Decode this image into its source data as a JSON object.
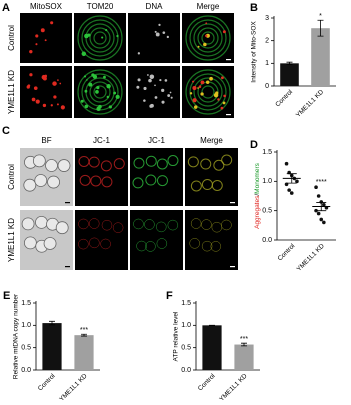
{
  "panels": [
    {
      "label": "A",
      "columns": [
        {
          "text": "MitoSOX",
          "color": "#e0201b"
        },
        {
          "text": "TOM20",
          "color": "#1a9a2a"
        },
        {
          "text": "DNA",
          "color": "#2030d0"
        },
        {
          "text": "Merge",
          "color": "#000000"
        }
      ],
      "rows": [
        "Control",
        "YME1L1 KD"
      ]
    },
    {
      "label": "C",
      "columns": [
        {
          "text": "BF",
          "color": "#000000"
        },
        {
          "text": "JC-1",
          "color": "#e0201b"
        },
        {
          "text": "JC-1",
          "color": "#1a9a2a"
        },
        {
          "text": "Merge",
          "color": "#000000"
        }
      ],
      "rows": [
        "Control",
        "YME1L1 KD"
      ]
    }
  ],
  "chart_data": [
    {
      "type": "bar",
      "label": "B",
      "ylabel": "Intensity of Mito-SOX",
      "categories": [
        "Control",
        "YME1L1 KD"
      ],
      "values": [
        1.0,
        2.55
      ],
      "errors": [
        0.05,
        0.35
      ],
      "colors": [
        "#111111",
        "#a0a0a0"
      ],
      "annotations": [
        null,
        "*"
      ],
      "ylim": [
        0,
        3
      ],
      "yticks": [
        0,
        1,
        2,
        3
      ]
    },
    {
      "type": "scatter",
      "label": "D",
      "ylabel_parts": [
        {
          "text": "Aggregates",
          "color": "#e0201b"
        },
        {
          "text": "/",
          "color": "#000000"
        },
        {
          "text": "Monomers",
          "color": "#1a9a2a"
        }
      ],
      "categories": [
        "Control",
        "YME1L1 KD"
      ],
      "points": [
        [
          1.3,
          1.15,
          1.1,
          1.05,
          1.0,
          0.95,
          0.85,
          0.8
        ],
        [
          0.9,
          0.75,
          0.65,
          0.6,
          0.55,
          0.5,
          0.45,
          0.35,
          0.3
        ]
      ],
      "means": [
        1.05,
        0.57
      ],
      "errors": [
        0.08,
        0.07
      ],
      "annotations": [
        null,
        "****"
      ],
      "ylim": [
        0,
        1.5
      ],
      "yticks": [
        {
          "value": 0,
          "label": "0.0"
        },
        0.5,
        {
          "value": 1,
          "label": "1.0"
        },
        1.5
      ]
    },
    {
      "type": "bar",
      "label": "E",
      "ylabel": "Relative mtDNA copy number",
      "categories": [
        "Control",
        "YME1L1 KD"
      ],
      "values": [
        1.05,
        0.78
      ],
      "errors": [
        0.04,
        0.02
      ],
      "colors": [
        "#111111",
        "#a0a0a0"
      ],
      "annotations": [
        null,
        "***"
      ],
      "ylim": [
        0,
        1.5
      ],
      "yticks": [
        {
          "value": 0,
          "label": "0.0"
        },
        0.5,
        {
          "value": 1,
          "label": "1.0"
        },
        1.5
      ]
    },
    {
      "type": "bar",
      "label": "F",
      "ylabel": "ATP relative level",
      "categories": [
        "Control",
        "YME1L1 KD"
      ],
      "values": [
        1.0,
        0.57
      ],
      "errors": [
        0,
        0.03
      ],
      "colors": [
        "#111111",
        "#a0a0a0"
      ],
      "annotations": [
        null,
        "***"
      ],
      "ylim": [
        0,
        1.5
      ],
      "yticks": [
        {
          "value": 0,
          "label": "0.0"
        },
        0.5,
        {
          "value": 1,
          "label": "1.0"
        },
        1.5
      ]
    }
  ]
}
